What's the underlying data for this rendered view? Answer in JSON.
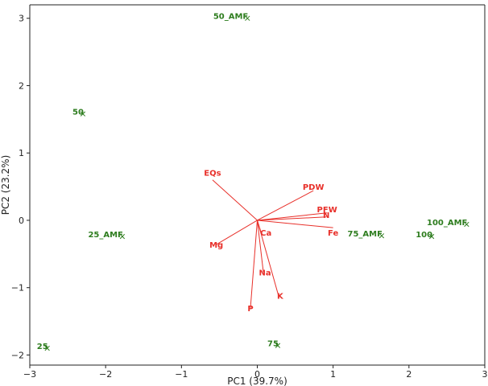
{
  "chart_data": {
    "type": "scatter",
    "subtype": "biplot",
    "xlabel": "PC1 (39.7%)",
    "ylabel": "PC2 (23.2%)",
    "xlim": [
      -3,
      3
    ],
    "ylim": [
      -2.15,
      3.2
    ],
    "x_ticks": [
      -3,
      -2,
      -1,
      0,
      1,
      2,
      3
    ],
    "y_ticks": [
      -2,
      -1,
      0,
      1,
      2,
      3
    ],
    "x_tick_labels": [
      "−3",
      "−2",
      "−1",
      "0",
      "1",
      "2",
      "3"
    ],
    "y_tick_labels": [
      "−2",
      "−1",
      "0",
      "1",
      "2",
      "3"
    ],
    "grid": false,
    "colors": {
      "scores": "#2e7d1f",
      "loadings": "#e8302a"
    },
    "scores": [
      {
        "label": "50_AMF",
        "x": -0.13,
        "y": 3.0
      },
      {
        "label": "50",
        "x": -2.3,
        "y": 1.58
      },
      {
        "label": "25_AMF",
        "x": -1.78,
        "y": -0.24
      },
      {
        "label": "25",
        "x": -2.77,
        "y": -1.9
      },
      {
        "label": "75",
        "x": 0.27,
        "y": -1.86
      },
      {
        "label": "75_AMF",
        "x": 1.64,
        "y": -0.23
      },
      {
        "label": "100",
        "x": 2.3,
        "y": -0.24
      },
      {
        "label": "100_AMF",
        "x": 2.76,
        "y": -0.06
      }
    ],
    "loadings": [
      {
        "label": "EQs",
        "x": -0.59,
        "y": 0.6
      },
      {
        "label": "PDW",
        "x": 0.74,
        "y": 0.44
      },
      {
        "label": "PFW",
        "x": 0.92,
        "y": 0.11
      },
      {
        "label": "N",
        "x": 0.91,
        "y": 0.05
      },
      {
        "label": "Fe",
        "x": 1.0,
        "y": -0.11
      },
      {
        "label": "Ca",
        "x": 0.05,
        "y": -0.18
      },
      {
        "label": "Mg",
        "x": -0.54,
        "y": -0.36
      },
      {
        "label": "Na",
        "x": 0.08,
        "y": -0.77
      },
      {
        "label": "K",
        "x": 0.28,
        "y": -1.12
      },
      {
        "label": "P",
        "x": -0.09,
        "y": -1.3
      }
    ]
  }
}
